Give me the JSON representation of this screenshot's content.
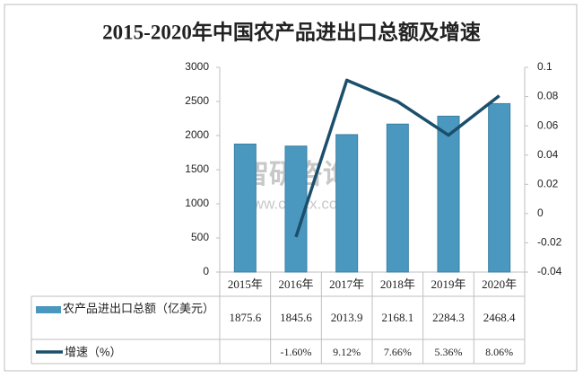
{
  "chart_data": {
    "type": "bar",
    "title": "2015-2020年中国农产品进出口总额及增速",
    "categories": [
      "2015年",
      "2016年",
      "2017年",
      "2018年",
      "2019年",
      "2020年"
    ],
    "series": [
      {
        "name": "农产品进出口总额（亿美元）",
        "type": "bar",
        "color": "#4a98bf",
        "values": [
          1875.6,
          1845.6,
          2013.9,
          2168.1,
          2284.3,
          2468.4
        ]
      },
      {
        "name": "增速（%）",
        "type": "line",
        "axis": "y2",
        "color": "#1b4f6b",
        "values": [
          null,
          -0.016,
          0.0912,
          0.0766,
          0.0536,
          0.0806
        ],
        "value_labels": [
          null,
          "-1.60%",
          "9.12%",
          "7.66%",
          "5.36%",
          "8.06%"
        ]
      }
    ],
    "ylim": [
      0,
      3000
    ],
    "yticks": [
      0,
      500,
      1000,
      1500,
      2000,
      2500,
      3000
    ],
    "y2lim": [
      -0.04,
      0.1
    ],
    "y2ticks": [
      -0.04,
      -0.02,
      0,
      0.02,
      0.04,
      0.06,
      0.08,
      0.1
    ],
    "grid": false,
    "watermark": {
      "brand": "智研咨询",
      "url": "www.chyxx.com"
    }
  }
}
